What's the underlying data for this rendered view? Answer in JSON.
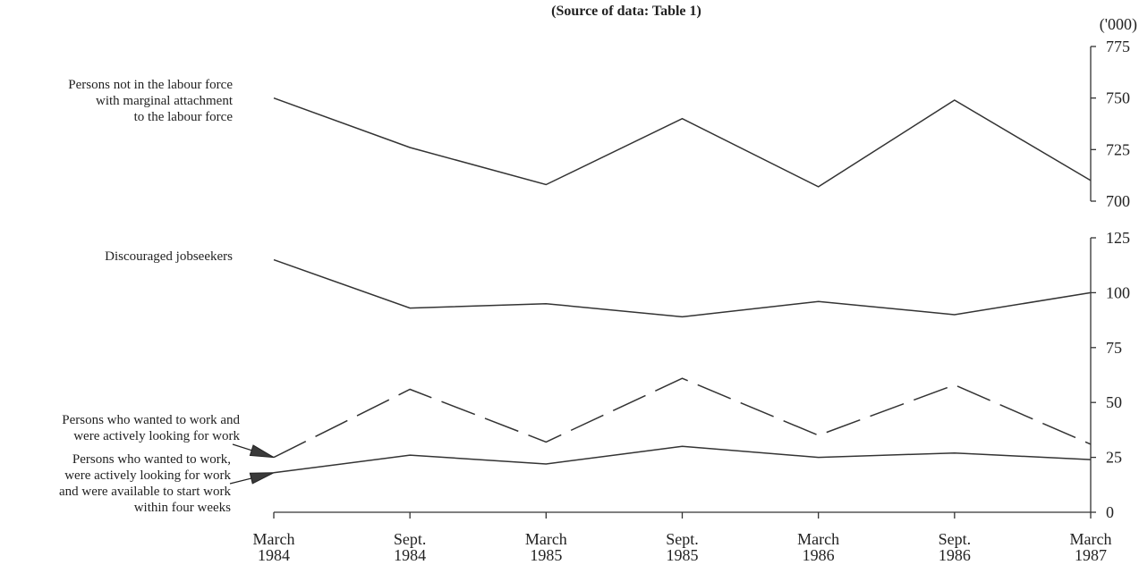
{
  "chart_data": {
    "type": "line",
    "source_note": "(Source of data: Table 1)",
    "unit_label": "('000)",
    "categories": [
      [
        "March",
        "1984"
      ],
      [
        "Sept.",
        "1984"
      ],
      [
        "March",
        "1985"
      ],
      [
        "Sept.",
        "1985"
      ],
      [
        "March",
        "1986"
      ],
      [
        "Sept.",
        "1986"
      ],
      [
        "March",
        "1987"
      ]
    ],
    "upper_panel": {
      "ylim": [
        700,
        775
      ],
      "yticks": [
        700,
        725,
        750,
        775
      ],
      "series": [
        {
          "name": "Persons not in the labour force with marginal attachment to the labour force",
          "label_lines": [
            "Persons not in the labour force",
            "with marginal attachment",
            "to the labour force"
          ],
          "style": "solid",
          "values": [
            750,
            726,
            708,
            740,
            707,
            749,
            710
          ]
        }
      ]
    },
    "lower_panel": {
      "ylim": [
        0,
        125
      ],
      "yticks": [
        0,
        25,
        50,
        75,
        100,
        125
      ],
      "series": [
        {
          "name": "Discouraged jobseekers",
          "label_lines": [
            "Discouraged jobseekers"
          ],
          "style": "solid",
          "values": [
            115,
            93,
            95,
            89,
            96,
            90,
            100
          ]
        },
        {
          "name": "Persons who wanted to work and were actively looking for work",
          "label_lines": [
            "Persons who wanted to work and",
            "were actively looking for work"
          ],
          "style": "dashed",
          "values": [
            25,
            56,
            32,
            61,
            35,
            58,
            31
          ]
        },
        {
          "name": "Persons who wanted to work, were actively looking for work and were available to start work within four weeks",
          "label_lines": [
            "Persons who wanted to work,",
            "were actively looking for work",
            "and were available to start work",
            "within four weeks"
          ],
          "style": "solid",
          "values": [
            18,
            26,
            22,
            30,
            25,
            27,
            24
          ]
        }
      ]
    }
  }
}
